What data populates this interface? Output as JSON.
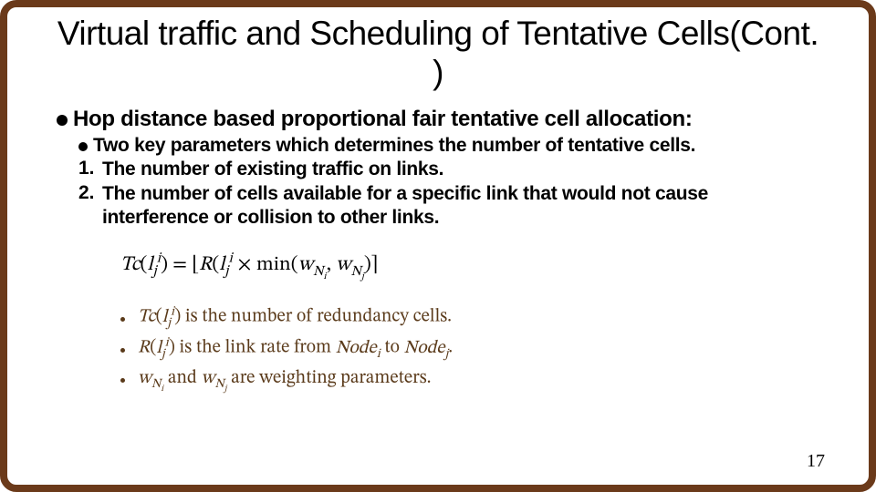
{
  "colors": {
    "border": "#6b3a1a",
    "text": "#000000",
    "legend_text": "#5a3a1a",
    "background": "#ffffff"
  },
  "typography": {
    "title_fontsize": 37,
    "l1_fontsize": 24,
    "l2_fontsize": 21,
    "math_fontsize": 22,
    "legend_fontsize": 20,
    "pagenum_fontsize": 20
  },
  "title": "Virtual traffic and Scheduling of Tentative Cells(Cont. )",
  "l1": "Hop distance based proportional fair tentative cell allocation:",
  "l2": "Two key parameters which determines the number of tentative cells.",
  "items": {
    "n1": {
      "num": "1.",
      "text": "The number of existing traffic on links."
    },
    "n2": {
      "num": "2.",
      "text": "The number of cells available for a specific link that would not cause interference or collision to other links."
    }
  },
  "formula": {
    "lhs_fn": "Tc",
    "arg_base": "l",
    "arg_sub": "j",
    "arg_sup": "i",
    "rhs_fn": "R",
    "min_label": "min",
    "w1_base": "w",
    "w1_sub": "N_i",
    "w2_base": "w",
    "w2_sub": "N_j"
  },
  "legend": {
    "r1": {
      "prefix_fn": "Tc",
      "arg_html": "l<sub>j</sub><sup>i</sup>",
      "suffix": " is the number of redundancy cells."
    },
    "r2": {
      "prefix_fn": "R",
      "arg_html": "l<sub>j</sub><sup>i</sup>",
      "mid": " is the link rate from ",
      "node1": "Node<sub>i</sub>",
      "to": " to ",
      "node2": "Node<sub>j</sub>",
      "tail": "."
    },
    "r3": {
      "w1": "w<sub>N<sub>i</sub></sub>",
      "and": " and ",
      "w2": "w<sub>N<sub>j</sub></sub>",
      "suffix": " are weighting parameters."
    }
  },
  "page_number": "17"
}
